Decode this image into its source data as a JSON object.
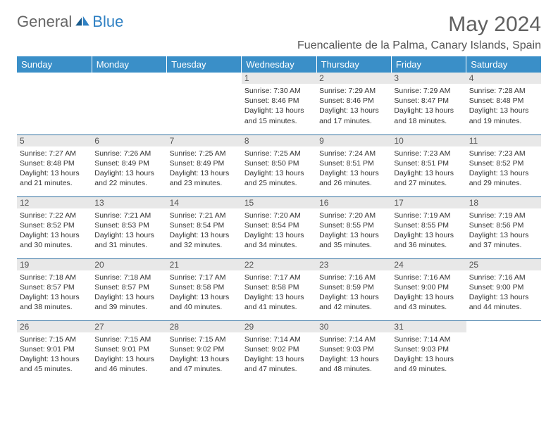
{
  "brand": {
    "part1": "General",
    "part2": "Blue"
  },
  "title": "May 2024",
  "location": "Fuencaliente de la Palma, Canary Islands, Spain",
  "colors": {
    "header_bg": "#3a8fc8",
    "header_text": "#ffffff",
    "row_divider": "#2f6fa0",
    "daynum_bg": "#e8e8e8",
    "body_text": "#333333",
    "title_text": "#606060"
  },
  "weekdays": [
    "Sunday",
    "Monday",
    "Tuesday",
    "Wednesday",
    "Thursday",
    "Friday",
    "Saturday"
  ],
  "weeks": [
    [
      null,
      null,
      null,
      {
        "day": "1",
        "sunrise": "Sunrise: 7:30 AM",
        "sunset": "Sunset: 8:46 PM",
        "daylight": "Daylight: 13 hours and 15 minutes."
      },
      {
        "day": "2",
        "sunrise": "Sunrise: 7:29 AM",
        "sunset": "Sunset: 8:46 PM",
        "daylight": "Daylight: 13 hours and 17 minutes."
      },
      {
        "day": "3",
        "sunrise": "Sunrise: 7:29 AM",
        "sunset": "Sunset: 8:47 PM",
        "daylight": "Daylight: 13 hours and 18 minutes."
      },
      {
        "day": "4",
        "sunrise": "Sunrise: 7:28 AM",
        "sunset": "Sunset: 8:48 PM",
        "daylight": "Daylight: 13 hours and 19 minutes."
      }
    ],
    [
      {
        "day": "5",
        "sunrise": "Sunrise: 7:27 AM",
        "sunset": "Sunset: 8:48 PM",
        "daylight": "Daylight: 13 hours and 21 minutes."
      },
      {
        "day": "6",
        "sunrise": "Sunrise: 7:26 AM",
        "sunset": "Sunset: 8:49 PM",
        "daylight": "Daylight: 13 hours and 22 minutes."
      },
      {
        "day": "7",
        "sunrise": "Sunrise: 7:25 AM",
        "sunset": "Sunset: 8:49 PM",
        "daylight": "Daylight: 13 hours and 23 minutes."
      },
      {
        "day": "8",
        "sunrise": "Sunrise: 7:25 AM",
        "sunset": "Sunset: 8:50 PM",
        "daylight": "Daylight: 13 hours and 25 minutes."
      },
      {
        "day": "9",
        "sunrise": "Sunrise: 7:24 AM",
        "sunset": "Sunset: 8:51 PM",
        "daylight": "Daylight: 13 hours and 26 minutes."
      },
      {
        "day": "10",
        "sunrise": "Sunrise: 7:23 AM",
        "sunset": "Sunset: 8:51 PM",
        "daylight": "Daylight: 13 hours and 27 minutes."
      },
      {
        "day": "11",
        "sunrise": "Sunrise: 7:23 AM",
        "sunset": "Sunset: 8:52 PM",
        "daylight": "Daylight: 13 hours and 29 minutes."
      }
    ],
    [
      {
        "day": "12",
        "sunrise": "Sunrise: 7:22 AM",
        "sunset": "Sunset: 8:52 PM",
        "daylight": "Daylight: 13 hours and 30 minutes."
      },
      {
        "day": "13",
        "sunrise": "Sunrise: 7:21 AM",
        "sunset": "Sunset: 8:53 PM",
        "daylight": "Daylight: 13 hours and 31 minutes."
      },
      {
        "day": "14",
        "sunrise": "Sunrise: 7:21 AM",
        "sunset": "Sunset: 8:54 PM",
        "daylight": "Daylight: 13 hours and 32 minutes."
      },
      {
        "day": "15",
        "sunrise": "Sunrise: 7:20 AM",
        "sunset": "Sunset: 8:54 PM",
        "daylight": "Daylight: 13 hours and 34 minutes."
      },
      {
        "day": "16",
        "sunrise": "Sunrise: 7:20 AM",
        "sunset": "Sunset: 8:55 PM",
        "daylight": "Daylight: 13 hours and 35 minutes."
      },
      {
        "day": "17",
        "sunrise": "Sunrise: 7:19 AM",
        "sunset": "Sunset: 8:55 PM",
        "daylight": "Daylight: 13 hours and 36 minutes."
      },
      {
        "day": "18",
        "sunrise": "Sunrise: 7:19 AM",
        "sunset": "Sunset: 8:56 PM",
        "daylight": "Daylight: 13 hours and 37 minutes."
      }
    ],
    [
      {
        "day": "19",
        "sunrise": "Sunrise: 7:18 AM",
        "sunset": "Sunset: 8:57 PM",
        "daylight": "Daylight: 13 hours and 38 minutes."
      },
      {
        "day": "20",
        "sunrise": "Sunrise: 7:18 AM",
        "sunset": "Sunset: 8:57 PM",
        "daylight": "Daylight: 13 hours and 39 minutes."
      },
      {
        "day": "21",
        "sunrise": "Sunrise: 7:17 AM",
        "sunset": "Sunset: 8:58 PM",
        "daylight": "Daylight: 13 hours and 40 minutes."
      },
      {
        "day": "22",
        "sunrise": "Sunrise: 7:17 AM",
        "sunset": "Sunset: 8:58 PM",
        "daylight": "Daylight: 13 hours and 41 minutes."
      },
      {
        "day": "23",
        "sunrise": "Sunrise: 7:16 AM",
        "sunset": "Sunset: 8:59 PM",
        "daylight": "Daylight: 13 hours and 42 minutes."
      },
      {
        "day": "24",
        "sunrise": "Sunrise: 7:16 AM",
        "sunset": "Sunset: 9:00 PM",
        "daylight": "Daylight: 13 hours and 43 minutes."
      },
      {
        "day": "25",
        "sunrise": "Sunrise: 7:16 AM",
        "sunset": "Sunset: 9:00 PM",
        "daylight": "Daylight: 13 hours and 44 minutes."
      }
    ],
    [
      {
        "day": "26",
        "sunrise": "Sunrise: 7:15 AM",
        "sunset": "Sunset: 9:01 PM",
        "daylight": "Daylight: 13 hours and 45 minutes."
      },
      {
        "day": "27",
        "sunrise": "Sunrise: 7:15 AM",
        "sunset": "Sunset: 9:01 PM",
        "daylight": "Daylight: 13 hours and 46 minutes."
      },
      {
        "day": "28",
        "sunrise": "Sunrise: 7:15 AM",
        "sunset": "Sunset: 9:02 PM",
        "daylight": "Daylight: 13 hours and 47 minutes."
      },
      {
        "day": "29",
        "sunrise": "Sunrise: 7:14 AM",
        "sunset": "Sunset: 9:02 PM",
        "daylight": "Daylight: 13 hours and 47 minutes."
      },
      {
        "day": "30",
        "sunrise": "Sunrise: 7:14 AM",
        "sunset": "Sunset: 9:03 PM",
        "daylight": "Daylight: 13 hours and 48 minutes."
      },
      {
        "day": "31",
        "sunrise": "Sunrise: 7:14 AM",
        "sunset": "Sunset: 9:03 PM",
        "daylight": "Daylight: 13 hours and 49 minutes."
      },
      null
    ]
  ]
}
